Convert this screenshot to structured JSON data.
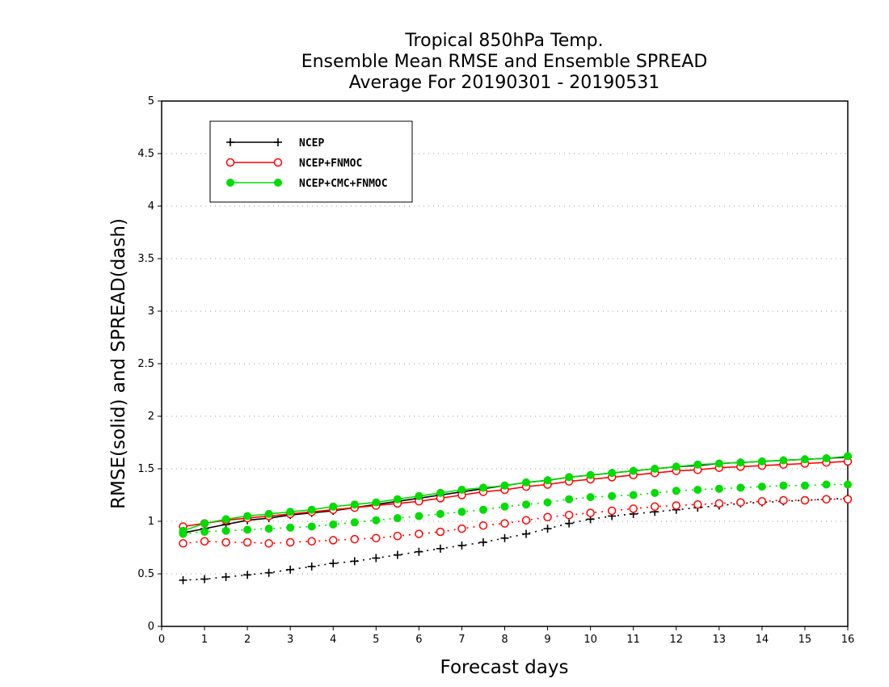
{
  "chart_data": {
    "type": "line",
    "title_lines": [
      "Tropical 850hPa Temp.",
      "Ensemble Mean RMSE and Ensemble SPREAD",
      "Average For 20190301 - 20190531"
    ],
    "xlabel": "Forecast days",
    "ylabel": "RMSE(solid) and SPREAD(dash)",
    "xlim": [
      0,
      16
    ],
    "ylim": [
      0,
      5
    ],
    "x_ticks": [
      "0",
      "1",
      "2",
      "3",
      "4",
      "5",
      "6",
      "7",
      "8",
      "9",
      "10",
      "11",
      "12",
      "13",
      "14",
      "15",
      "16"
    ],
    "y_ticks": [
      "0",
      "0.5",
      "1",
      "1.5",
      "2",
      "2.5",
      "3",
      "3.5",
      "4",
      "4.5",
      "5"
    ],
    "grid": "horizontal dotted",
    "legend_position": "top-left",
    "x": [
      0.5,
      1,
      1.5,
      2,
      2.5,
      3,
      3.5,
      4,
      4.5,
      5,
      5.5,
      6,
      6.5,
      7,
      7.5,
      8,
      8.5,
      9,
      9.5,
      10,
      10.5,
      11,
      11.5,
      12,
      12.5,
      13,
      13.5,
      14,
      14.5,
      15,
      15.5,
      16
    ],
    "series": [
      {
        "name": "NCEP",
        "color": "#000000",
        "marker": "plus",
        "rmse": [
          0.89,
          0.93,
          0.97,
          1.01,
          1.03,
          1.06,
          1.08,
          1.1,
          1.13,
          1.16,
          1.19,
          1.22,
          1.25,
          1.28,
          1.31,
          1.34,
          1.37,
          1.39,
          1.42,
          1.44,
          1.46,
          1.48,
          1.5,
          1.52,
          1.53,
          1.55,
          1.56,
          1.57,
          1.58,
          1.59,
          1.6,
          1.61
        ],
        "spread": [
          0.44,
          0.45,
          0.47,
          0.49,
          0.51,
          0.54,
          0.57,
          0.6,
          0.62,
          0.65,
          0.68,
          0.71,
          0.74,
          0.77,
          0.8,
          0.84,
          0.88,
          0.93,
          0.98,
          1.02,
          1.05,
          1.07,
          1.09,
          1.11,
          1.13,
          1.15,
          1.17,
          1.18,
          1.19,
          1.2,
          1.21,
          1.22
        ]
      },
      {
        "name": "NCEP+FNMOC",
        "color": "#ff0000",
        "marker": "open-circle",
        "rmse": [
          0.95,
          0.98,
          1.01,
          1.03,
          1.05,
          1.07,
          1.09,
          1.11,
          1.13,
          1.15,
          1.17,
          1.19,
          1.22,
          1.25,
          1.28,
          1.3,
          1.33,
          1.35,
          1.38,
          1.4,
          1.42,
          1.44,
          1.46,
          1.48,
          1.49,
          1.51,
          1.52,
          1.53,
          1.54,
          1.55,
          1.56,
          1.57
        ],
        "spread": [
          0.79,
          0.81,
          0.8,
          0.8,
          0.79,
          0.8,
          0.81,
          0.82,
          0.83,
          0.84,
          0.86,
          0.88,
          0.9,
          0.93,
          0.96,
          0.98,
          1.01,
          1.04,
          1.06,
          1.08,
          1.1,
          1.12,
          1.14,
          1.15,
          1.16,
          1.17,
          1.18,
          1.19,
          1.2,
          1.2,
          1.21,
          1.21
        ]
      },
      {
        "name": "NCEP+CMC+FNMOC",
        "color": "#00dd00",
        "marker": "filled-circle",
        "rmse": [
          0.91,
          0.98,
          1.02,
          1.05,
          1.07,
          1.09,
          1.11,
          1.14,
          1.16,
          1.18,
          1.21,
          1.24,
          1.27,
          1.3,
          1.32,
          1.34,
          1.37,
          1.39,
          1.42,
          1.44,
          1.46,
          1.48,
          1.5,
          1.52,
          1.54,
          1.55,
          1.56,
          1.57,
          1.58,
          1.59,
          1.6,
          1.62
        ],
        "spread": [
          0.88,
          0.9,
          0.91,
          0.92,
          0.93,
          0.94,
          0.95,
          0.97,
          0.99,
          1.01,
          1.03,
          1.05,
          1.07,
          1.09,
          1.11,
          1.14,
          1.16,
          1.18,
          1.21,
          1.23,
          1.24,
          1.25,
          1.27,
          1.29,
          1.3,
          1.31,
          1.32,
          1.33,
          1.34,
          1.34,
          1.35,
          1.35
        ]
      }
    ]
  }
}
